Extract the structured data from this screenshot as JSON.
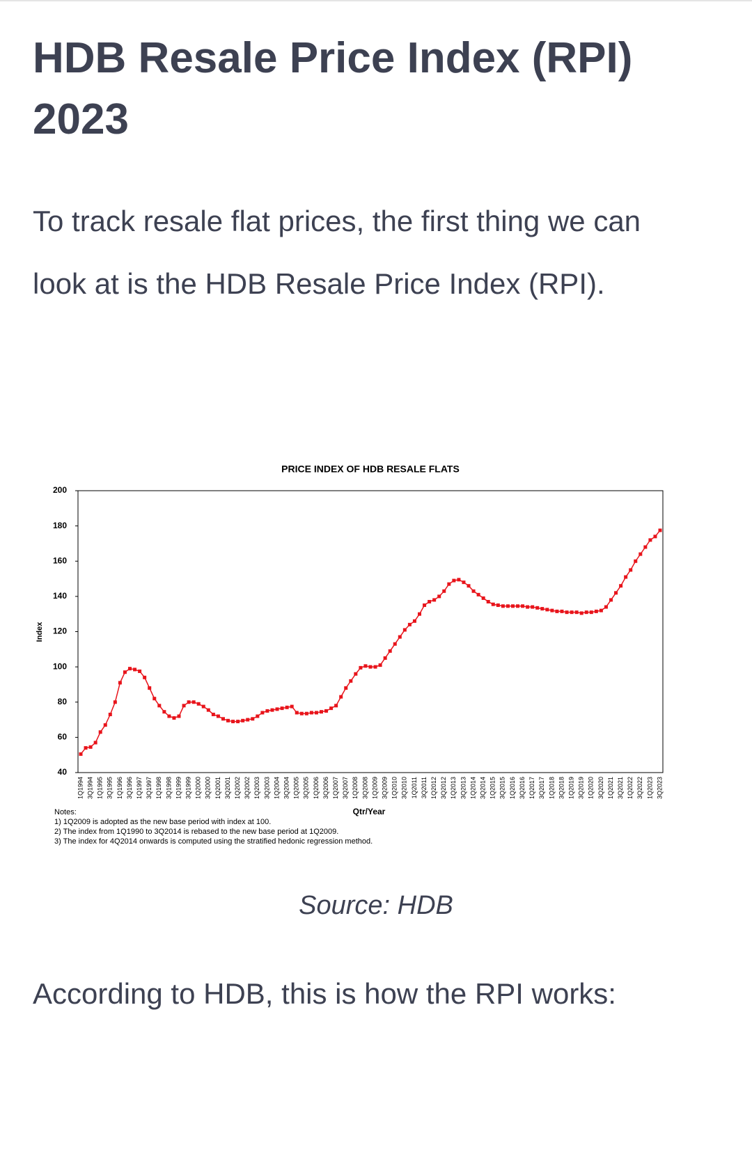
{
  "article": {
    "title": "HDB Resale Price Index (RPI) 2023",
    "intro": "To track resale flat prices, the first thing we can look at is the HDB Resale Price Index (RPI).",
    "source": "Source: HDB",
    "outro": "According to HDB, this is how the RPI works:"
  },
  "chart_data": {
    "type": "line",
    "title": "PRICE INDEX OF HDB RESALE FLATS",
    "y_label": "Index",
    "x_label": "Qtr/Year",
    "notes": [
      "Notes:",
      "1) 1Q2009 is adopted as the new base period with index at 100.",
      "2) The index from 1Q1990 to 3Q2014 is rebased to the new base  period at 1Q2009.",
      "3) The index for 4Q2014 onwards is computed using the stratified hedonic regression method."
    ],
    "categories": [
      "1Q1994",
      null,
      "3Q1994",
      null,
      "1Q1995",
      null,
      "3Q1995",
      null,
      "1Q1996",
      null,
      "3Q1996",
      null,
      "1Q1997",
      null,
      "3Q1997",
      null,
      "1Q1998",
      null,
      "3Q1998",
      null,
      "1Q1999",
      null,
      "3Q1999",
      null,
      "1Q2000",
      null,
      "3Q2000",
      null,
      "1Q2001",
      null,
      "3Q2001",
      null,
      "1Q2002",
      null,
      "3Q2002",
      null,
      "1Q2003",
      null,
      "3Q2003",
      null,
      "1Q2004",
      null,
      "3Q2004",
      null,
      "1Q2005",
      null,
      "3Q2005",
      null,
      "1Q2006",
      null,
      "3Q2006",
      null,
      "1Q2007",
      null,
      "3Q2007",
      null,
      "1Q2008",
      null,
      "3Q2008",
      null,
      "1Q2009",
      null,
      "3Q2009",
      null,
      "1Q2010",
      null,
      "3Q2010",
      null,
      "1Q2011",
      null,
      "3Q2011",
      null,
      "1Q2012",
      null,
      "3Q2012",
      null,
      "1Q2013",
      null,
      "3Q2013",
      null,
      "1Q2014",
      null,
      "3Q2014",
      null,
      "1Q2015",
      null,
      "3Q2015",
      null,
      "1Q2016",
      null,
      "3Q2016",
      null,
      "1Q2017",
      null,
      "3Q2017",
      null,
      "1Q2018",
      null,
      "3Q2018",
      null,
      "1Q2019",
      null,
      "3Q2019",
      null,
      "1Q2020",
      null,
      "3Q2020",
      null,
      "1Q2021",
      null,
      "3Q2021",
      null,
      "1Q2022",
      null,
      "3Q2022",
      null,
      "1Q2023",
      null,
      "3Q2023"
    ],
    "series": [
      {
        "name": "Index",
        "color": "#e8141b",
        "values": [
          50.5,
          54,
          54.5,
          57,
          63,
          67,
          73,
          80,
          91,
          97,
          99,
          98.5,
          97.5,
          94,
          88,
          82,
          78,
          74.5,
          72,
          71,
          72,
          78,
          80,
          80,
          79,
          77.5,
          75.5,
          73,
          72,
          70.5,
          69.5,
          69,
          69,
          69.5,
          70,
          70.5,
          72,
          74,
          75,
          75.5,
          76,
          76.5,
          77,
          77.5,
          74,
          73.5,
          73.5,
          74,
          74,
          74.5,
          75,
          76.5,
          78,
          83,
          88,
          92,
          96,
          99.5,
          100.5,
          100,
          100,
          101,
          105,
          109,
          113,
          117,
          121,
          124,
          126,
          130,
          135,
          137,
          138,
          140,
          143,
          147,
          149,
          149.5,
          148,
          146,
          143,
          141,
          139,
          137,
          135.5,
          135,
          134.5,
          134.5,
          134.5,
          134.5,
          134.5,
          134,
          134,
          133.5,
          133,
          132.5,
          132,
          131.5,
          131.5,
          131,
          131,
          131,
          130.5,
          131,
          131,
          131.5,
          132,
          134,
          138,
          142,
          146,
          151,
          155,
          160,
          164,
          168,
          172,
          174,
          177.5
        ]
      }
    ],
    "ylim": [
      40,
      200
    ],
    "yticks": [
      40,
      60,
      80,
      100,
      120,
      140,
      160,
      180,
      200
    ]
  }
}
